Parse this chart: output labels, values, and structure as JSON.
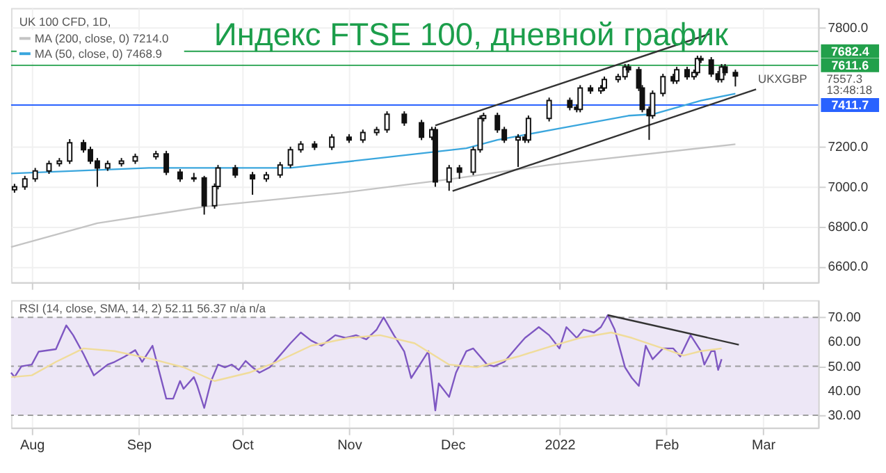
{
  "chart_data": [
    {
      "type": "candlestick",
      "title": "Индекс FTSE 100, дневной график",
      "color": "#111111",
      "x": [
        "2021-07-27",
        "2021-07-30",
        "2021-08-02",
        "2021-08-06",
        "2021-08-09",
        "2021-08-12",
        "2021-08-16",
        "2021-08-18",
        "2021-08-20",
        "2021-08-23",
        "2021-08-27",
        "2021-08-31",
        "2021-09-06",
        "2021-09-09",
        "2021-09-13",
        "2021-09-17",
        "2021-09-20",
        "2021-09-23",
        "2021-09-24",
        "2021-09-29",
        "2021-10-04",
        "2021-10-08",
        "2021-10-12",
        "2021-10-15",
        "2021-10-18",
        "2021-10-22",
        "2021-10-27",
        "2021-11-01",
        "2021-11-05",
        "2021-11-09",
        "2021-11-12",
        "2021-11-17",
        "2021-11-22",
        "2021-11-25",
        "2021-11-26",
        "2021-11-30",
        "2021-12-03",
        "2021-12-07",
        "2021-12-09",
        "2021-12-10",
        "2021-12-14",
        "2021-12-16",
        "2021-12-20",
        "2021-12-22",
        "2021-12-23",
        "2021-12-29",
        "2022-01-04",
        "2022-01-06",
        "2022-01-07",
        "2022-01-10",
        "2022-01-13",
        "2022-01-14",
        "2022-01-18",
        "2022-01-20",
        "2022-01-21",
        "2022-01-24",
        "2022-01-25",
        "2022-01-27",
        "2022-01-28",
        "2022-01-31",
        "2022-02-03",
        "2022-02-04",
        "2022-02-07",
        "2022-02-09",
        "2022-02-10",
        "2022-02-11",
        "2022-02-14",
        "2022-02-16",
        "2022-02-17",
        "2022-02-18",
        "2022-02-21"
      ],
      "ohlc": [
        [
          6985,
          7015,
          6970,
          7000
        ],
        [
          7000,
          7055,
          6985,
          7040
        ],
        [
          7040,
          7095,
          7025,
          7080
        ],
        [
          7080,
          7132,
          7065,
          7117
        ],
        [
          7117,
          7145,
          7102,
          7130
        ],
        [
          7130,
          7240,
          7115,
          7222
        ],
        [
          7222,
          7237,
          7172,
          7187
        ],
        [
          7187,
          7202,
          7115,
          7130
        ],
        [
          7130,
          7145,
          7000,
          7095
        ],
        [
          7095,
          7132,
          7080,
          7117
        ],
        [
          7117,
          7145,
          7102,
          7130
        ],
        [
          7130,
          7167,
          7115,
          7152
        ],
        [
          7152,
          7181,
          7137,
          7166
        ],
        [
          7166,
          7181,
          7059,
          7074
        ],
        [
          7074,
          7089,
          7025,
          7040
        ],
        [
          7040,
          7070,
          7025,
          7045
        ],
        [
          7045,
          7055,
          6860,
          6905
        ],
        [
          6905,
          7017,
          6890,
          7002
        ],
        [
          7002,
          7110,
          6987,
          7095
        ],
        [
          7095,
          7110,
          7045,
          7060
        ],
        [
          7060,
          7075,
          6960,
          7040
        ],
        [
          7040,
          7075,
          7025,
          7060
        ],
        [
          7060,
          7125,
          7045,
          7110
        ],
        [
          7110,
          7202,
          7095,
          7187
        ],
        [
          7187,
          7230,
          7172,
          7215
        ],
        [
          7215,
          7230,
          7185,
          7200
        ],
        [
          7200,
          7265,
          7185,
          7250
        ],
        [
          7250,
          7265,
          7221,
          7236
        ],
        [
          7236,
          7288,
          7221,
          7273
        ],
        [
          7273,
          7302,
          7258,
          7287
        ],
        [
          7287,
          7380,
          7272,
          7365
        ],
        [
          7365,
          7380,
          7307,
          7322
        ],
        [
          7322,
          7337,
          7235,
          7250
        ],
        [
          7250,
          7302,
          7235,
          7287
        ],
        [
          7287,
          7302,
          7000,
          7025
        ],
        [
          7025,
          7110,
          6980,
          7095
        ],
        [
          7095,
          7110,
          7040,
          7074
        ],
        [
          7074,
          7202,
          7059,
          7187
        ],
        [
          7187,
          7359,
          7172,
          7344
        ],
        [
          7344,
          7373,
          7329,
          7358
        ],
        [
          7358,
          7373,
          7272,
          7287
        ],
        [
          7287,
          7302,
          7221,
          7236
        ],
        [
          7236,
          7265,
          7100,
          7250
        ],
        [
          7250,
          7265,
          7221,
          7236
        ],
        [
          7236,
          7359,
          7221,
          7344
        ],
        [
          7344,
          7449,
          7329,
          7434
        ],
        [
          7434,
          7449,
          7385,
          7400
        ],
        [
          7400,
          7415,
          7375,
          7390
        ],
        [
          7390,
          7512,
          7375,
          7497
        ],
        [
          7497,
          7512,
          7468,
          7483
        ],
        [
          7483,
          7512,
          7468,
          7497
        ],
        [
          7497,
          7555,
          7482,
          7540
        ],
        [
          7540,
          7569,
          7525,
          7554
        ],
        [
          7554,
          7618,
          7539,
          7603
        ],
        [
          7603,
          7618,
          7574,
          7589
        ],
        [
          7589,
          7604,
          7482,
          7497
        ],
        [
          7497,
          7512,
          7375,
          7390
        ],
        [
          7390,
          7405,
          7236,
          7358
        ],
        [
          7358,
          7485,
          7343,
          7470
        ],
        [
          7470,
          7569,
          7455,
          7554
        ],
        [
          7554,
          7569,
          7518,
          7533
        ],
        [
          7533,
          7604,
          7518,
          7589
        ],
        [
          7589,
          7604,
          7539,
          7554
        ],
        [
          7554,
          7590,
          7539,
          7575
        ],
        [
          7575,
          7660,
          7560,
          7645
        ],
        [
          7645,
          7660,
          7623,
          7638
        ],
        [
          7638,
          7653,
          7553,
          7568
        ],
        [
          7568,
          7583,
          7525,
          7540
        ],
        [
          7540,
          7618,
          7525,
          7603
        ],
        [
          7603,
          7618,
          7560,
          7575
        ],
        [
          7575,
          7590,
          7505,
          7557.3
        ]
      ],
      "series": [
        {
          "name": "MA (200, close, 0) 7214.0",
          "type": "line",
          "color": "#c4c4c4",
          "x": [
            "2021-07-26",
            "2021-08-20",
            "2021-09-20",
            "2021-10-30",
            "2021-12-01",
            "2021-12-29",
            "2022-02-21"
          ],
          "values": [
            6697,
            6817,
            6900,
            6970,
            7040,
            7110,
            7214.0
          ]
        },
        {
          "name": "MA (50, close, 0) 7468.9",
          "type": "line",
          "color": "#3aa6dd",
          "x": [
            "2021-07-26",
            "2021-09-04",
            "2021-10-15",
            "2021-11-10",
            "2021-12-05",
            "2021-12-14",
            "2022-01-01",
            "2022-01-21",
            "2022-01-28",
            "2022-02-11",
            "2022-02-21"
          ],
          "values": [
            7067,
            7095,
            7095,
            7145,
            7194,
            7236,
            7294,
            7358,
            7365,
            7434,
            7468.9
          ]
        },
        {
          "type": "line",
          "color": "#333333",
          "x": [
            "2021-11-26",
            "2022-02-14"
          ],
          "values": [
            7309,
            7772
          ]
        },
        {
          "type": "line",
          "color": "#333333",
          "x": [
            "2021-12-01",
            "2022-02-27"
          ],
          "values": [
            6979,
            7491
          ]
        }
      ],
      "ref_lines": [
        {
          "axis": "y",
          "value": 7682.4,
          "label": "7682.4",
          "color": "#22a04b"
        },
        {
          "axis": "y",
          "value": 7611.6,
          "label": "7611.6",
          "color": "#22a04b"
        },
        {
          "axis": "y",
          "value": 7411.7,
          "label": "7411.7",
          "color": "#2962ff"
        }
      ],
      "annotations": [
        "UK 100 CFD, 1D,",
        "UKXGBP",
        "7557.3",
        "13:48:18"
      ],
      "xlim": [
        "2021-07-26",
        "2022-03-17"
      ],
      "xticks": [
        {
          "value": "2021-08-01",
          "label": null
        },
        {
          "value": "2021-09-01",
          "label": null
        },
        {
          "value": "2021-10-01",
          "label": null
        },
        {
          "value": "2021-11-01",
          "label": null
        },
        {
          "value": "2021-12-01",
          "label": null
        },
        {
          "value": "2022-01-01",
          "label": null
        },
        {
          "value": "2022-02-01",
          "label": null
        },
        {
          "value": "2022-03-01",
          "label": null
        }
      ],
      "ylim": [
        6520,
        7900
      ],
      "yticks": [
        {
          "value": 6600,
          "label": "6600.0"
        },
        {
          "value": 6800,
          "label": "6800.0"
        },
        {
          "value": 7000,
          "label": "7000.0"
        },
        {
          "value": 7200,
          "label": "7200.0"
        },
        {
          "value": 7800,
          "label": "7800.0"
        }
      ],
      "tick_labels": "y",
      "grid": true,
      "legend": "top left"
    },
    {
      "type": "line",
      "series": [
        {
          "type": "line",
          "color": "#7e57c2",
          "x": [
            "2021-07-26",
            "2021-07-27",
            "2021-07-29",
            "2021-08-01",
            "2021-08-03",
            "2021-08-08",
            "2021-08-11",
            "2021-08-13",
            "2021-08-16",
            "2021-08-19",
            "2021-08-23",
            "2021-08-25",
            "2021-08-28",
            "2021-08-31",
            "2021-09-02",
            "2021-09-05",
            "2021-09-09",
            "2021-09-11",
            "2021-09-13",
            "2021-09-14",
            "2021-09-17",
            "2021-09-18",
            "2021-09-20",
            "2021-09-22",
            "2021-09-24",
            "2021-09-26",
            "2021-09-28",
            "2021-09-30",
            "2021-10-02",
            "2021-10-04",
            "2021-10-06",
            "2021-10-09",
            "2021-10-11",
            "2021-10-15",
            "2021-10-18",
            "2021-10-21",
            "2021-10-24",
            "2021-10-28",
            "2021-10-31",
            "2021-11-03",
            "2021-11-06",
            "2021-11-09",
            "2021-11-11",
            "2021-11-14",
            "2021-11-17",
            "2021-11-19",
            "2021-11-22",
            "2021-11-24",
            "2021-11-26",
            "2021-11-27",
            "2021-11-30",
            "2021-12-02",
            "2021-12-05",
            "2021-12-07",
            "2021-12-11",
            "2021-12-13",
            "2021-12-16",
            "2021-12-20",
            "2021-12-22",
            "2021-12-26",
            "2021-12-29",
            "2022-01-01",
            "2022-01-03",
            "2022-01-06",
            "2022-01-08",
            "2022-01-11",
            "2022-01-13",
            "2022-01-15",
            "2022-01-17",
            "2022-01-20",
            "2022-01-22",
            "2022-01-24",
            "2022-01-26",
            "2022-01-28",
            "2022-01-31",
            "2022-02-03",
            "2022-02-05",
            "2022-02-08",
            "2022-02-11",
            "2022-02-12",
            "2022-02-14",
            "2022-02-15",
            "2022-02-16",
            "2022-02-17"
          ],
          "values": [
            47.4,
            45.6,
            50,
            50.7,
            56,
            57,
            66.7,
            62.7,
            55,
            46.3,
            50.7,
            51.8,
            54,
            56.6,
            51.8,
            58.4,
            36.8,
            36.8,
            44,
            40.8,
            45.6,
            42,
            33,
            44,
            50.7,
            49.6,
            50.7,
            48.5,
            52.2,
            49.6,
            47.4,
            49.6,
            52.9,
            59.4,
            63.8,
            60.5,
            58.4,
            62.7,
            61.6,
            62.7,
            61,
            65,
            70,
            62.7,
            56,
            45.2,
            51.8,
            56.2,
            32,
            43,
            37.5,
            47.4,
            56.2,
            57.3,
            50.7,
            50,
            51.8,
            58.4,
            61.6,
            66,
            62.7,
            57.3,
            66,
            61.6,
            65,
            63.8,
            66,
            70.9,
            65,
            49.6,
            45.2,
            42,
            58.4,
            52.9,
            57.3,
            57.3,
            54,
            62.7,
            56.2,
            50.7,
            56.2,
            56.2,
            48.5,
            52.9
          ]
        },
        {
          "type": "line",
          "color": "#f0dc9a",
          "x": [
            "2021-07-26",
            "2021-08-01",
            "2021-08-08",
            "2021-08-16",
            "2021-08-25",
            "2021-09-05",
            "2021-09-14",
            "2021-09-23",
            "2021-10-03",
            "2021-10-11",
            "2021-10-21",
            "2021-11-01",
            "2021-11-10",
            "2021-11-20",
            "2021-11-30",
            "2021-12-08",
            "2021-12-20",
            "2021-12-30",
            "2022-01-07",
            "2022-01-16",
            "2022-01-22",
            "2022-01-31",
            "2022-02-06",
            "2022-02-11",
            "2022-02-17"
          ],
          "values": [
            45.6,
            46.3,
            51.8,
            57.3,
            56.2,
            52.9,
            49.6,
            44,
            47.4,
            51.8,
            58.4,
            61.6,
            62.7,
            59.4,
            50.7,
            49.6,
            54,
            58.4,
            61.6,
            63.8,
            61.6,
            57.3,
            54.4,
            56.2,
            57.3
          ]
        },
        {
          "type": "line",
          "color": "#333333",
          "x": [
            "2022-01-15",
            "2022-02-22"
          ],
          "values": [
            70.9,
            58.8
          ]
        }
      ],
      "bands": [
        {
          "axis": "y",
          "from": 30,
          "to": 70,
          "color": "#ede7f6"
        }
      ],
      "ref_lines": [
        {
          "axis": "y",
          "value": 70,
          "line_style": "dashed",
          "color": "#9e9e9e"
        },
        {
          "axis": "y",
          "value": 50,
          "line_style": "dashed",
          "color": "#9e9e9e"
        },
        {
          "axis": "y",
          "value": 30,
          "line_style": "dashed",
          "color": "#9e9e9e"
        }
      ],
      "annotations": [
        "RSI (14, close, SMA, 14, 2) 52.11 56.37 n/a n/a"
      ],
      "xlim": [
        "2021-07-26",
        "2022-03-17"
      ],
      "xticks": [
        {
          "value": "2021-08-01",
          "label": "Aug"
        },
        {
          "value": "2021-09-01",
          "label": "Sep"
        },
        {
          "value": "2021-10-01",
          "label": "Oct"
        },
        {
          "value": "2021-11-01",
          "label": "Nov"
        },
        {
          "value": "2021-12-01",
          "label": "Dec"
        },
        {
          "value": "2022-01-01",
          "label": "2022"
        },
        {
          "value": "2022-02-01",
          "label": "Feb"
        },
        {
          "value": "2022-03-01",
          "label": "Mar"
        }
      ],
      "ylim": [
        25,
        77
      ],
      "yticks": [
        {
          "value": 30,
          "label": "30.00"
        },
        {
          "value": 40,
          "label": "40.00"
        },
        {
          "value": 50,
          "label": "50.00"
        },
        {
          "value": 60,
          "label": "60.00"
        },
        {
          "value": 70,
          "label": "70.00"
        }
      ],
      "grid": "x"
    }
  ]
}
